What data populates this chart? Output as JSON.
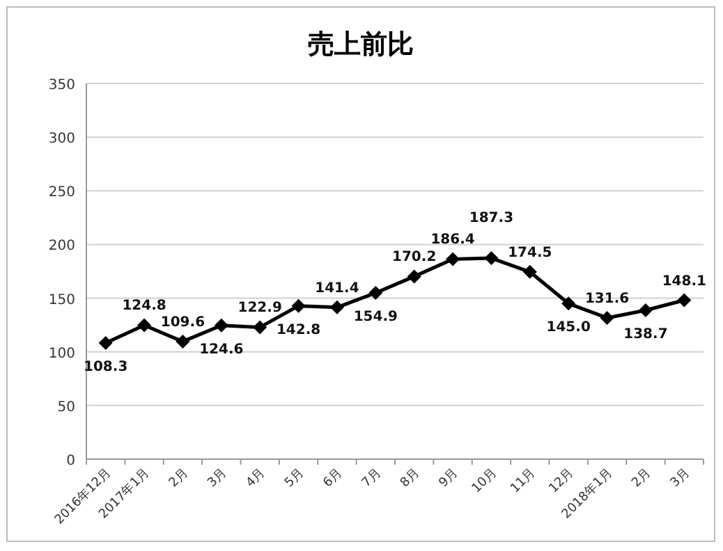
{
  "chart_data": {
    "type": "line",
    "title": "売上前比",
    "categories": [
      "2016年12月",
      "2017年1月",
      "2月",
      "3月",
      "4月",
      "5月",
      "6月",
      "7月",
      "8月",
      "9月",
      "10月",
      "11月",
      "12月",
      "2018年1月",
      "2月",
      "3月"
    ],
    "series": [
      {
        "color": "#000000",
        "values": [
          108.3,
          124.8,
          109.6,
          124.6,
          122.9,
          142.8,
          141.4,
          154.9,
          170.2,
          186.4,
          187.3,
          174.5,
          145.0,
          131.6,
          138.7,
          148.1
        ],
        "value_labels": [
          "108.3",
          "124.8",
          "109.6",
          "124.6",
          "122.9",
          "142.8",
          "141.4",
          "154.9",
          "170.2",
          "186.4",
          "187.3",
          "174.5",
          "145.0",
          "131.6",
          "138.7",
          "148.1"
        ]
      }
    ],
    "ylim": [
      0,
      350
    ],
    "yticks": [
      0,
      50,
      100,
      150,
      200,
      250,
      300,
      350
    ],
    "grid": "y",
    "marker": "diamond",
    "line_style": "solid"
  }
}
